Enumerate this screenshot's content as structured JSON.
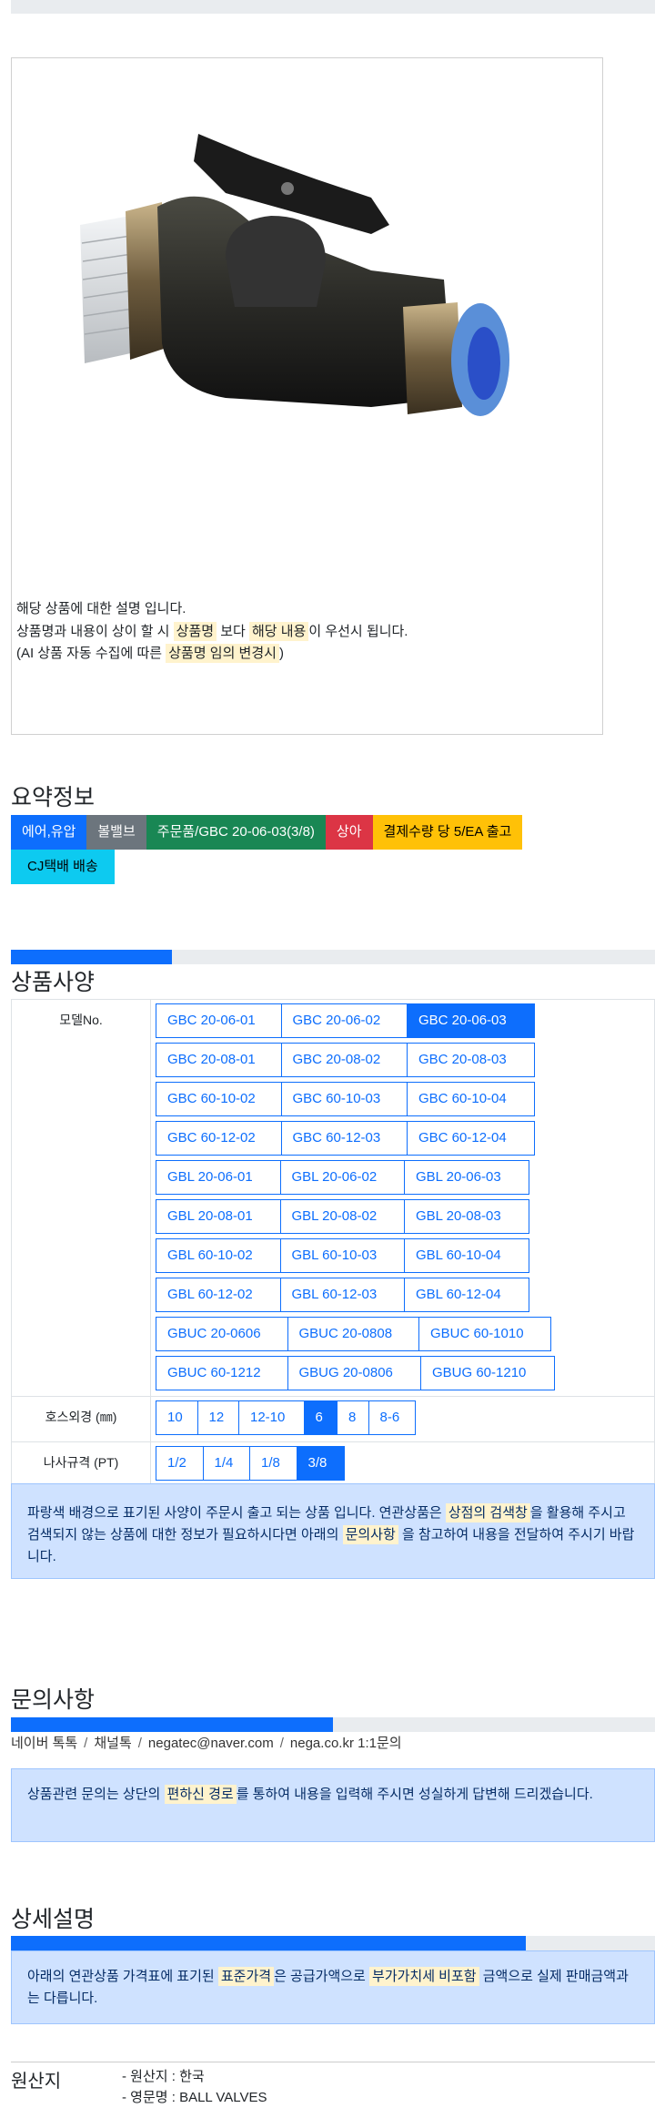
{
  "notice": {
    "line1": "해당 상품에 대한 설명 입니다.",
    "line2_a": "상품명과 내용이 상이 할 시 ",
    "line2_hl1": "상품명",
    "line2_b": " 보다 ",
    "line2_hl2": "해당 내용",
    "line2_c": "이 우선시 됩니다.",
    "line3_a": "(AI 상품 자동 수집에 따른 ",
    "line3_hl": "상품명 임의 변경시",
    "line3_b": ")"
  },
  "summary": {
    "title": "요약정보",
    "badges": [
      {
        "label": "에어,유압",
        "color": "#0d6efd"
      },
      {
        "label": "볼밸브",
        "color": "#6c757d"
      },
      {
        "label": "주문품/GBC 20-06-03(3/8)",
        "color": "#198754"
      },
      {
        "label": "상아",
        "color": "#dc3545"
      },
      {
        "label": "결제수량 당 5/EA 출고",
        "color": "#ffc107"
      },
      {
        "label": "CJ택배 배송",
        "color": "#0dcaf0"
      }
    ]
  },
  "spec": {
    "title": "상품사양",
    "progress_percent": 25,
    "model_label": "모델No.",
    "models": [
      [
        "GBC 20-06-01",
        "GBC 20-06-02",
        "GBC 20-06-03"
      ],
      [
        "GBC 20-08-01",
        "GBC 20-08-02",
        "GBC 20-08-03"
      ],
      [
        "GBC 60-10-02",
        "GBC 60-10-03",
        "GBC 60-10-04"
      ],
      [
        "GBC 60-12-02",
        "GBC 60-12-03",
        "GBC 60-12-04"
      ],
      [
        "GBL 20-06-01",
        "GBL 20-06-02",
        "GBL 20-06-03"
      ],
      [
        "GBL 20-08-01",
        "GBL 20-08-02",
        "GBL 20-08-03"
      ],
      [
        "GBL 60-10-02",
        "GBL 60-10-03",
        "GBL 60-10-04"
      ],
      [
        "GBL 60-12-02",
        "GBL 60-12-03",
        "GBL 60-12-04"
      ],
      [
        "GBUC 20-0606",
        "GBUC 20-0808",
        "GBUC 60-1010"
      ],
      [
        "GBUC 60-1212",
        "GBUG 20-0806",
        "GBUG 60-1210"
      ]
    ],
    "model_selected": "GBC 20-06-03",
    "hose_label": "호스외경 (㎜)",
    "hose": [
      "10",
      "12",
      "12-10",
      "6",
      "8",
      "8-6"
    ],
    "hose_selected": "6",
    "thread_label": "나사규격 (PT)",
    "thread": [
      "1/2",
      "1/4",
      "1/8",
      "3/8"
    ],
    "thread_selected": "3/8",
    "info_a": "파랑색 배경으로 표기된 사양이 주문시 출고 되는 상품 입니다. 연관상품은 ",
    "info_hl1": "상점의 검색창",
    "info_b": "을 활용해 주시고 검색되지 않는 상품에 대한 정보가 필요하시다면 아래의 ",
    "info_hl2": "문의사항",
    "info_c": " 을 참고하여 내용을 전달하여 주시기 바랍니다."
  },
  "inquiry": {
    "title": "문의사항",
    "progress_percent": 50,
    "links": [
      "네이버 톡톡",
      "채널톡",
      "negatec@naver.com",
      "nega.co.kr 1:1문의"
    ],
    "info_a": "상품관련 문의는 상단의 ",
    "info_hl": "편하신 경로",
    "info_b": "를 통하여 내용을 입력해 주시면 성실하게 답변해 드리겠습니다."
  },
  "detail": {
    "title": "상세설명",
    "progress_percent": 80,
    "info_a": "아래의 연관상품 가격표에 표기된 ",
    "info_hl1": "표준가격",
    "info_b": "은 공급가액으로 ",
    "info_hl2": "부가가치세 비포함",
    "info_c": " 금액으로 실제 판매금액과는 다릅니다."
  },
  "origin": {
    "label": "원산지",
    "lines": [
      "- 원산지 : 한국",
      "- 영문명 : BALL VALVES"
    ]
  }
}
